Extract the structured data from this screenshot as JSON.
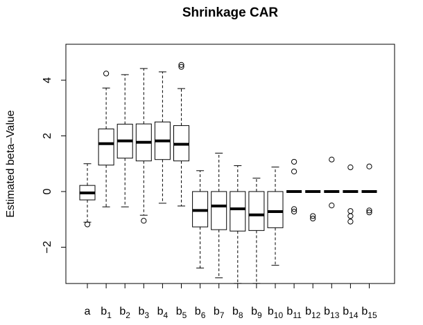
{
  "chart_data": {
    "type": "boxplot",
    "title": "Shrinkage CAR",
    "ylabel": "Estimated beta–Value",
    "xlabel": "",
    "ylim": [
      -3.3,
      5.3
    ],
    "yticks": [
      -2,
      0,
      2,
      4
    ],
    "categories": [
      {
        "base": "a",
        "sub": ""
      },
      {
        "base": "b",
        "sub": "1"
      },
      {
        "base": "b",
        "sub": "2"
      },
      {
        "base": "b",
        "sub": "3"
      },
      {
        "base": "b",
        "sub": "4"
      },
      {
        "base": "b",
        "sub": "5"
      },
      {
        "base": "b",
        "sub": "6"
      },
      {
        "base": "b",
        "sub": "7"
      },
      {
        "base": "b",
        "sub": "8"
      },
      {
        "base": "b",
        "sub": "9"
      },
      {
        "base": "b",
        "sub": "10"
      },
      {
        "base": "b",
        "sub": "11"
      },
      {
        "base": "b",
        "sub": "12"
      },
      {
        "base": "b",
        "sub": "13"
      },
      {
        "base": "b",
        "sub": "14"
      },
      {
        "base": "b",
        "sub": "15"
      }
    ],
    "boxes": [
      {
        "whisker_low": -1.1,
        "q1": -0.3,
        "median": -0.05,
        "q3": 0.22,
        "whisker_high": 1.0,
        "outliers": [
          -1.18
        ]
      },
      {
        "whisker_low": -0.55,
        "q1": 0.95,
        "median": 1.72,
        "q3": 2.25,
        "whisker_high": 3.72,
        "outliers": [
          4.24
        ]
      },
      {
        "whisker_low": -0.55,
        "q1": 1.2,
        "median": 1.82,
        "q3": 2.42,
        "whisker_high": 4.2,
        "outliers": []
      },
      {
        "whisker_low": -0.85,
        "q1": 1.1,
        "median": 1.77,
        "q3": 2.43,
        "whisker_high": 4.42,
        "outliers": [
          -1.05
        ]
      },
      {
        "whisker_low": -0.42,
        "q1": 1.15,
        "median": 1.82,
        "q3": 2.5,
        "whisker_high": 4.3,
        "outliers": []
      },
      {
        "whisker_low": -0.52,
        "q1": 1.1,
        "median": 1.7,
        "q3": 2.37,
        "whisker_high": 3.7,
        "outliers": [
          4.48,
          4.55
        ]
      },
      {
        "whisker_low": -2.75,
        "q1": -1.27,
        "median": -0.68,
        "q3": 0.0,
        "whisker_high": 0.75,
        "outliers": []
      },
      {
        "whisker_low": -3.1,
        "q1": -1.37,
        "median": -0.52,
        "q3": 0.0,
        "whisker_high": 1.38,
        "outliers": []
      },
      {
        "whisker_low": -3.3,
        "q1": -1.42,
        "median": -0.62,
        "q3": 0.0,
        "whisker_high": 0.93,
        "outliers": []
      },
      {
        "whisker_low": -3.3,
        "q1": -1.4,
        "median": -0.84,
        "q3": 0.0,
        "whisker_high": 0.48,
        "outliers": []
      },
      {
        "whisker_low": -2.65,
        "q1": -1.3,
        "median": -0.72,
        "q3": 0.0,
        "whisker_high": 0.88,
        "outliers": []
      },
      {
        "whisker_low": 0.0,
        "q1": 0.0,
        "median": 0.0,
        "q3": 0.0,
        "whisker_high": 0.0,
        "outliers": [
          1.07,
          0.72,
          -0.63,
          -0.72
        ]
      },
      {
        "whisker_low": 0.0,
        "q1": 0.0,
        "median": 0.0,
        "q3": 0.0,
        "whisker_high": 0.0,
        "outliers": [
          -0.88,
          -0.97
        ]
      },
      {
        "whisker_low": 0.0,
        "q1": 0.0,
        "median": 0.0,
        "q3": 0.0,
        "whisker_high": 0.0,
        "outliers": [
          1.15,
          -0.5
        ]
      },
      {
        "whisker_low": 0.0,
        "q1": 0.0,
        "median": 0.0,
        "q3": 0.0,
        "whisker_high": 0.0,
        "outliers": [
          0.87,
          -0.7,
          -0.88,
          -1.08
        ]
      },
      {
        "whisker_low": 0.0,
        "q1": 0.0,
        "median": 0.0,
        "q3": 0.0,
        "whisker_high": 0.0,
        "outliers": [
          0.9,
          -0.68,
          -0.75
        ]
      }
    ],
    "colors": {
      "stroke": "#000000",
      "fill": "#ffffff",
      "background": "#ffffff"
    },
    "grid": false,
    "legend": "none"
  }
}
